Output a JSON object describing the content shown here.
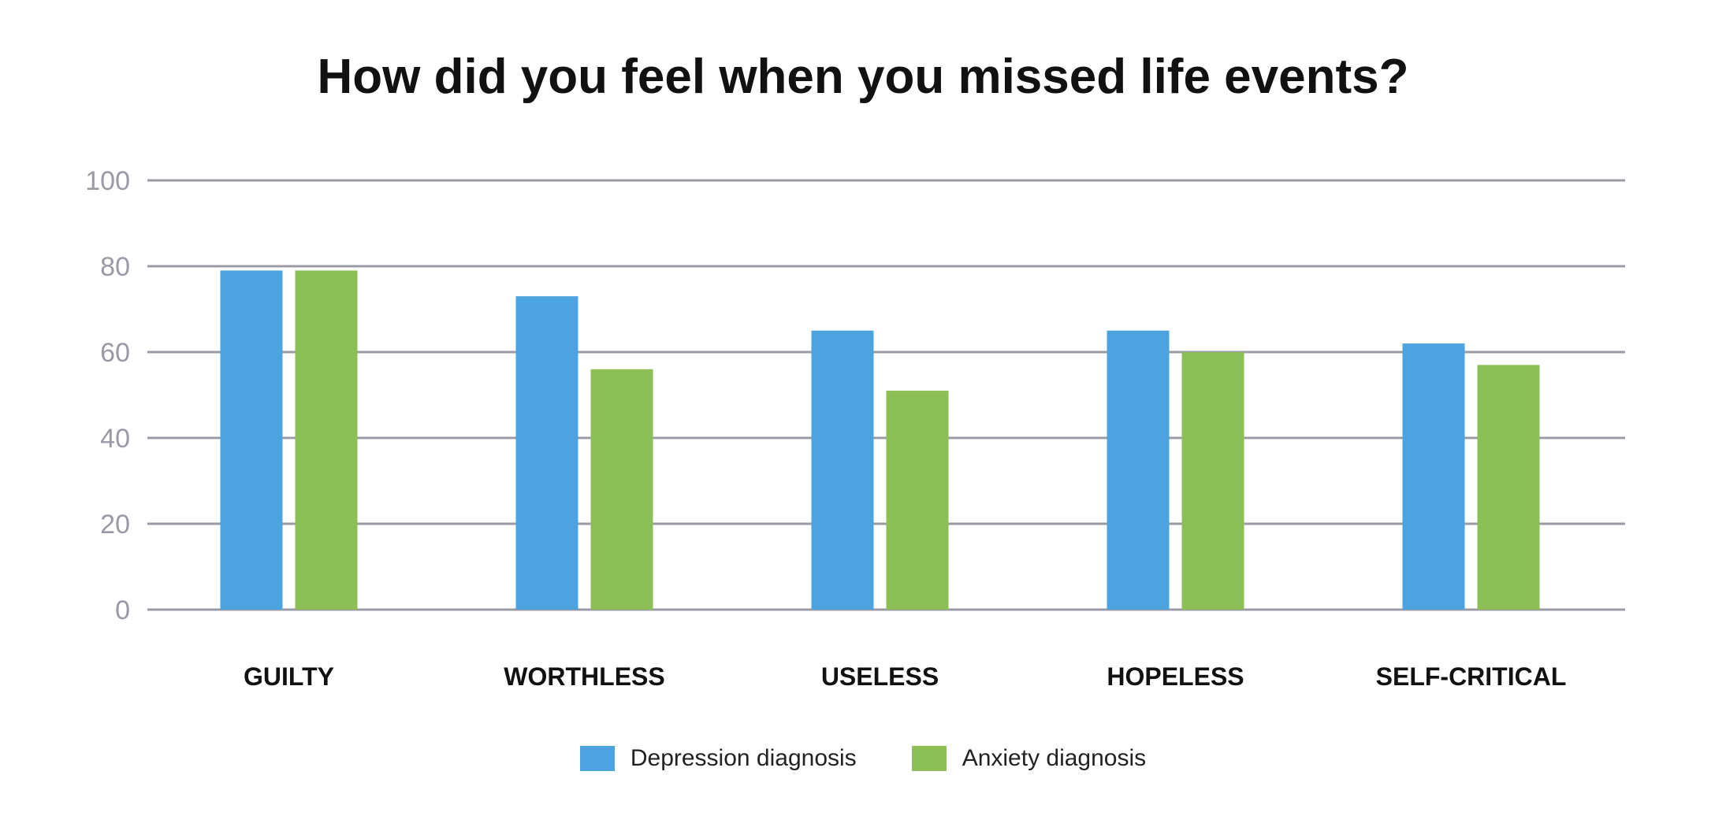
{
  "chart_data": {
    "type": "bar",
    "title": "How did you feel when you missed life events?",
    "xlabel": "",
    "ylabel": "",
    "ylim": [
      0,
      100
    ],
    "yticks": [
      0,
      20,
      40,
      60,
      80,
      100
    ],
    "grid": true,
    "legend_position": "bottom",
    "categories": [
      "GUILTY",
      "WORTHLESS",
      "USELESS",
      "HOPELESS",
      "SELF-CRITICAL"
    ],
    "series": [
      {
        "name": "Depression diagnosis",
        "color": "#4ca3e0",
        "values": [
          79,
          73,
          65,
          65,
          62
        ]
      },
      {
        "name": "Anxiety diagnosis",
        "color": "#8cbf55",
        "values": [
          79,
          56,
          51,
          60,
          57
        ]
      }
    ]
  }
}
